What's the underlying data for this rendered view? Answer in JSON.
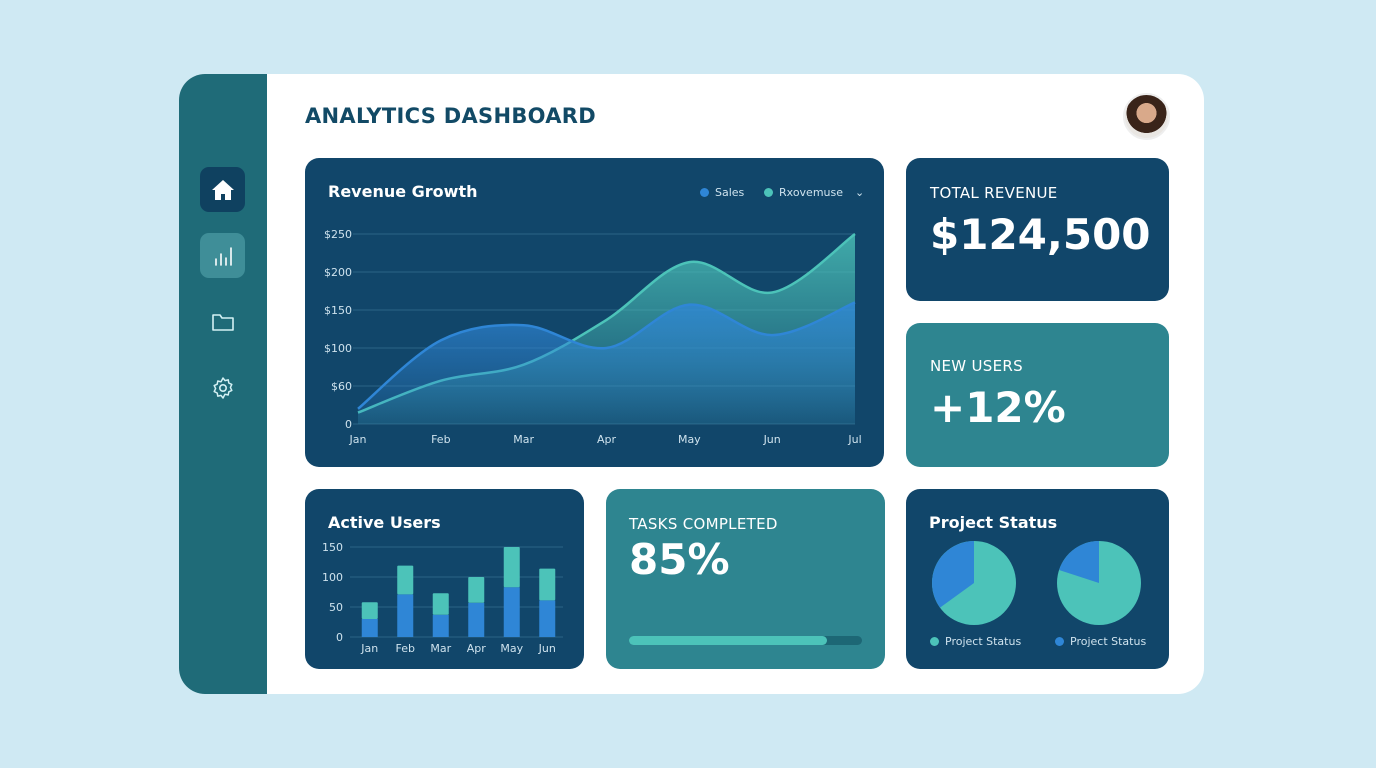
{
  "header": {
    "title": "ANALYTICS DASHBOARD"
  },
  "sidebar": {
    "items": [
      {
        "icon": "home-icon"
      },
      {
        "icon": "bar-chart-icon"
      },
      {
        "icon": "folder-icon"
      },
      {
        "icon": "gear-icon"
      }
    ]
  },
  "colors": {
    "sales": "#2f86d6",
    "revenue": "#4cc3b9",
    "card_dark": "#11466a",
    "card_teal": "#2e8590"
  },
  "kpis": {
    "total_revenue": {
      "label": "TOTAL REVENUE",
      "value": "$124,500"
    },
    "new_users": {
      "label": "NEW USERS",
      "value": "+12%"
    },
    "tasks": {
      "label": "TASKS COMPLETED",
      "value": "85%",
      "progress": 85
    }
  },
  "chart_data": [
    {
      "type": "area",
      "title": "Revenue Growth",
      "categories": [
        "Jan",
        "Feb",
        "Mar",
        "Apr",
        "May",
        "Jun",
        "Jul"
      ],
      "y_ticks": [
        "0",
        "$60",
        "$100",
        "$150",
        "$200",
        "$250"
      ],
      "ylim": [
        0,
        250
      ],
      "grid": true,
      "legend": "top-right",
      "series": [
        {
          "name": "Sales",
          "values": [
            20,
            110,
            130,
            100,
            157,
            117,
            160
          ]
        },
        {
          "name": "Rxovemuse",
          "values": [
            15,
            57,
            78,
            137,
            213,
            173,
            250
          ]
        }
      ]
    },
    {
      "type": "bar",
      "title": "Active Users",
      "categories": [
        "Jan",
        "Feb",
        "Mar",
        "Apr",
        "May",
        "Jun"
      ],
      "y_ticks": [
        "0",
        "50",
        "100",
        "150"
      ],
      "ylim": [
        0,
        150
      ],
      "stacked": true,
      "series": [
        {
          "values": [
            30,
            71,
            37,
            57,
            83,
            61
          ]
        },
        {
          "values": [
            28,
            48,
            36,
            43,
            67,
            53
          ]
        }
      ]
    },
    {
      "type": "pie",
      "title": "Project Status",
      "pies": [
        {
          "label": "Project Status",
          "values": [
            65,
            35
          ]
        },
        {
          "label": "Project Status",
          "values": [
            80,
            20
          ]
        }
      ]
    }
  ]
}
